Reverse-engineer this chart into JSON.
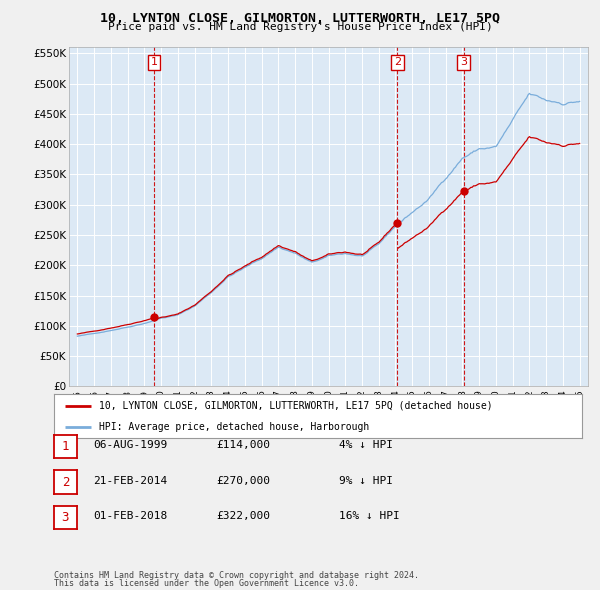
{
  "title": "10, LYNTON CLOSE, GILMORTON, LUTTERWORTH, LE17 5PQ",
  "subtitle": "Price paid vs. HM Land Registry's House Price Index (HPI)",
  "property_label": "10, LYNTON CLOSE, GILMORTON, LUTTERWORTH, LE17 5PQ (detached house)",
  "hpi_label": "HPI: Average price, detached house, Harborough",
  "footnote1": "Contains HM Land Registry data © Crown copyright and database right 2024.",
  "footnote2": "This data is licensed under the Open Government Licence v3.0.",
  "transactions": [
    {
      "num": 1,
      "date": "06-AUG-1999",
      "price": "£114,000",
      "pct": "4% ↓ HPI"
    },
    {
      "num": 2,
      "date": "21-FEB-2014",
      "price": "£270,000",
      "pct": "9% ↓ HPI"
    },
    {
      "num": 3,
      "date": "01-FEB-2018",
      "price": "£322,000",
      "pct": "16% ↓ HPI"
    }
  ],
  "transaction_years": [
    1999.58,
    2014.12,
    2018.08
  ],
  "transaction_values": [
    114000,
    270000,
    322000
  ],
  "property_color": "#cc0000",
  "hpi_color": "#7aaddb",
  "plot_bg_color": "#dce9f5",
  "background_color": "#f0f0f0",
  "ylim": [
    0,
    560000
  ],
  "yticks": [
    0,
    50000,
    100000,
    150000,
    200000,
    250000,
    300000,
    350000,
    400000,
    450000,
    500000,
    550000
  ],
  "xlim_start": 1994.5,
  "xlim_end": 2025.5
}
